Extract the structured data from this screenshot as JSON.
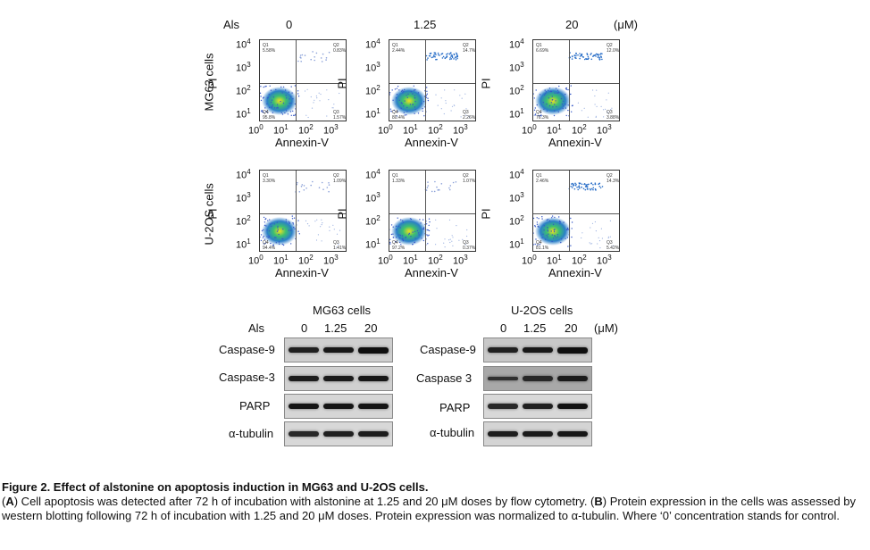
{
  "panelA": {
    "als_label": "Als",
    "doses": [
      "0",
      "1.25",
      "20"
    ],
    "unit": "(μM)",
    "rows": [
      {
        "cell_label": "MG63 cells",
        "plots": [
          {
            "q1": "5.58%",
            "q2": "0.83%",
            "q3": "1.57%",
            "q4": "95.8%"
          },
          {
            "q1": "2.44%",
            "q2": "14.7%",
            "q3": "2.26%",
            "q4": "80.4%"
          },
          {
            "q1": "6.69%",
            "q2": "12.0%",
            "q3": "3.88%",
            "q4": "76.3%"
          }
        ]
      },
      {
        "cell_label": "U-2OS cells",
        "plots": [
          {
            "q1": "3.30%",
            "q2": "1.09%",
            "q3": "1.41%",
            "q4": "94.4%"
          },
          {
            "q1": "1.33%",
            "q2": "1.07%",
            "q3": "0.37%",
            "q4": "97.2%"
          },
          {
            "q1": "2.46%",
            "q2": "14.3%",
            "q3": "5.42%",
            "q4": "81.1%"
          }
        ]
      }
    ],
    "y_axis_label": "PI",
    "x_axis_label": "Annexin-V",
    "x_ticks": [
      [
        "10",
        "0"
      ],
      [
        "10",
        "1"
      ],
      [
        "10",
        "2"
      ],
      [
        "10",
        "3"
      ]
    ],
    "y_ticks": [
      [
        "10",
        "4"
      ],
      [
        "10",
        "3"
      ],
      [
        "10",
        "2"
      ],
      [
        "10",
        "1"
      ]
    ]
  },
  "panelB": {
    "als_label": "Als",
    "unit": "(μM)",
    "groups": [
      {
        "title": "MG63 cells",
        "doses": [
          "0",
          "1.25",
          "20"
        ],
        "proteins": [
          "Caspase-9",
          "Caspase-3",
          "PARP",
          "α-tubulin"
        ]
      },
      {
        "title": "U-2OS cells",
        "doses": [
          "0",
          "1.25",
          "20"
        ],
        "proteins": [
          "Caspase-9",
          "Caspase 3",
          "PARP",
          "α-tubulin"
        ]
      }
    ]
  },
  "caption": {
    "title": "Figure 2. Effect of alstonine on apoptosis induction in MG63 and U-2OS cells.",
    "a_letter": "A",
    "a_text": ") Cell apoptosis was detected after 72 h of incubation with alstonine at 1.25 and 20 μM doses by flow cytometry. (",
    "b_letter": "B",
    "b_text": ") Protein expression in the cells was assessed by western blotting following 72 h of incubation with 1.25 and 20 μM doses. Protein expression was normalized to α-tubulin. Where ‘0’ concentration stands for control."
  }
}
